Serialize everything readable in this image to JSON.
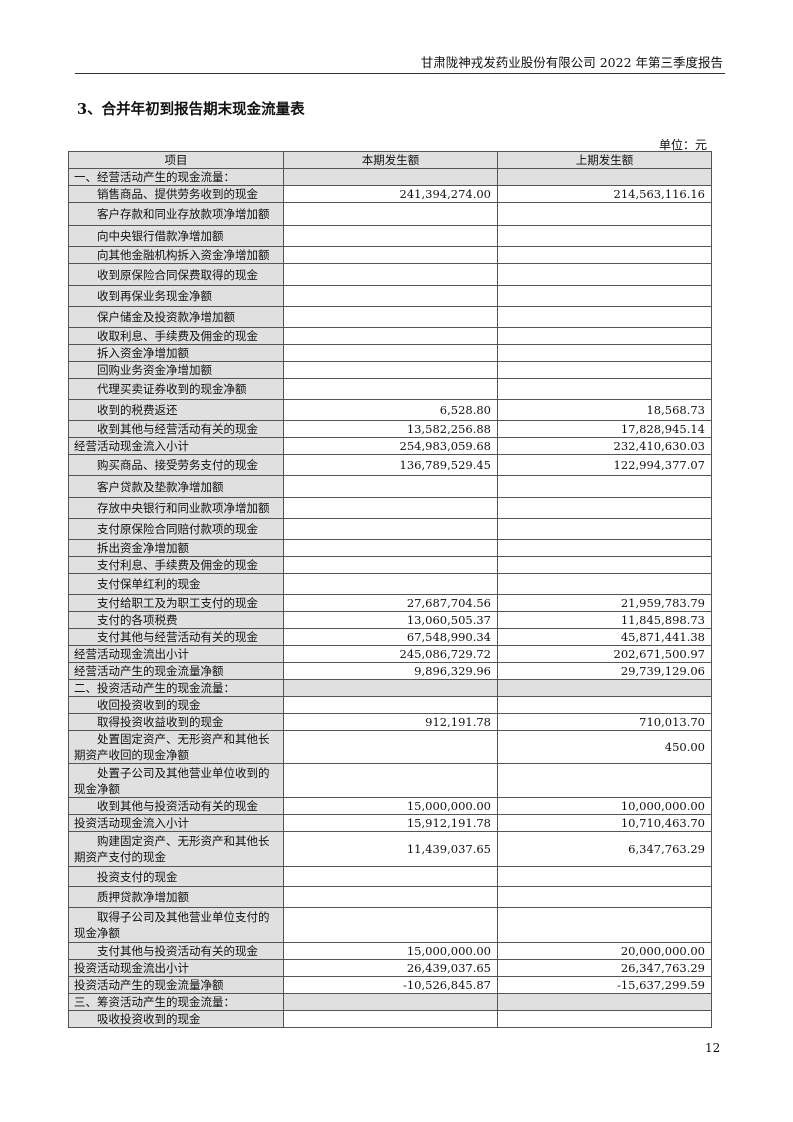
{
  "header": {
    "text": "甘肃陇神戎发药业股份有限公司 2022 年第三季度报告"
  },
  "title": "3、合并年初到报告期末现金流量表",
  "unit": "单位：元",
  "table": {
    "columns": [
      "项目",
      "本期发生额",
      "上期发生额"
    ],
    "rows": [
      {
        "item": "一、经营活动产生的现金流量：",
        "current": "",
        "previous": "",
        "type": "section"
      },
      {
        "item": "销售商品、提供劳务收到的现金",
        "current": "241,394,274.00",
        "previous": "214,563,116.16",
        "type": "indent"
      },
      {
        "item": "客户存款和同业存放款项净增加额",
        "current": "",
        "previous": "",
        "type": "indent"
      },
      {
        "item": "向中央银行借款净增加额",
        "current": "",
        "previous": "",
        "type": "indent"
      },
      {
        "item": "向其他金融机构拆入资金净增加额",
        "current": "",
        "previous": "",
        "type": "indent"
      },
      {
        "item": "收到原保险合同保费取得的现金",
        "current": "",
        "previous": "",
        "type": "indent"
      },
      {
        "item": "收到再保业务现金净额",
        "current": "",
        "previous": "",
        "type": "indent"
      },
      {
        "item": "保户储金及投资款净增加额",
        "current": "",
        "previous": "",
        "type": "indent"
      },
      {
        "item": "收取利息、手续费及佣金的现金",
        "current": "",
        "previous": "",
        "type": "indent"
      },
      {
        "item": "拆入资金净增加额",
        "current": "",
        "previous": "",
        "type": "indent"
      },
      {
        "item": "回购业务资金净增加额",
        "current": "",
        "previous": "",
        "type": "indent"
      },
      {
        "item": "代理买卖证券收到的现金净额",
        "current": "",
        "previous": "",
        "type": "indent"
      },
      {
        "item": "收到的税费返还",
        "current": "6,528.80",
        "previous": "18,568.73",
        "type": "indent"
      },
      {
        "item": "收到其他与经营活动有关的现金",
        "current": "13,582,256.88",
        "previous": "17,828,945.14",
        "type": "indent"
      },
      {
        "item": "经营活动现金流入小计",
        "current": "254,983,059.68",
        "previous": "232,410,630.03",
        "type": "total"
      },
      {
        "item": "购买商品、接受劳务支付的现金",
        "current": "136,789,529.45",
        "previous": "122,994,377.07",
        "type": "indent"
      },
      {
        "item": "客户贷款及垫款净增加额",
        "current": "",
        "previous": "",
        "type": "indent"
      },
      {
        "item": "存放中央银行和同业款项净增加额",
        "current": "",
        "previous": "",
        "type": "indent"
      },
      {
        "item": "支付原保险合同赔付款项的现金",
        "current": "",
        "previous": "",
        "type": "indent"
      },
      {
        "item": "拆出资金净增加额",
        "current": "",
        "previous": "",
        "type": "indent"
      },
      {
        "item": "支付利息、手续费及佣金的现金",
        "current": "",
        "previous": "",
        "type": "indent"
      },
      {
        "item": "支付保单红利的现金",
        "current": "",
        "previous": "",
        "type": "indent"
      },
      {
        "item": "支付给职工及为职工支付的现金",
        "current": "27,687,704.56",
        "previous": "21,959,783.79",
        "type": "indent"
      },
      {
        "item": "支付的各项税费",
        "current": "13,060,505.37",
        "previous": "11,845,898.73",
        "type": "indent"
      },
      {
        "item": "支付其他与经营活动有关的现金",
        "current": "67,548,990.34",
        "previous": "45,871,441.38",
        "type": "indent"
      },
      {
        "item": "经营活动现金流出小计",
        "current": "245,086,729.72",
        "previous": "202,671,500.97",
        "type": "total"
      },
      {
        "item": "经营活动产生的现金流量净额",
        "current": "9,896,329.96",
        "previous": "29,739,129.06",
        "type": "total"
      },
      {
        "item": "二、投资活动产生的现金流量：",
        "current": "",
        "previous": "",
        "type": "section"
      },
      {
        "item": "收回投资收到的现金",
        "current": "",
        "previous": "",
        "type": "indent"
      },
      {
        "item": "取得投资收益收到的现金",
        "current": "912,191.78",
        "previous": "710,013.70",
        "type": "indent"
      },
      {
        "item": "处置固定资产、无形资产和其他长期资产收回的现金净额",
        "current": "",
        "previous": "450.00",
        "type": "indent"
      },
      {
        "item": "处置子公司及其他营业单位收到的现金净额",
        "current": "",
        "previous": "",
        "type": "indent"
      },
      {
        "item": "收到其他与投资活动有关的现金",
        "current": "15,000,000.00",
        "previous": "10,000,000.00",
        "type": "indent"
      },
      {
        "item": "投资活动现金流入小计",
        "current": "15,912,191.78",
        "previous": "10,710,463.70",
        "type": "total"
      },
      {
        "item": "购建固定资产、无形资产和其他长期资产支付的现金",
        "current": "11,439,037.65",
        "previous": "6,347,763.29",
        "type": "indent"
      },
      {
        "item": "投资支付的现金",
        "current": "",
        "previous": "",
        "type": "indent"
      },
      {
        "item": "质押贷款净增加额",
        "current": "",
        "previous": "",
        "type": "indent"
      },
      {
        "item": "取得子公司及其他营业单位支付的现金净额",
        "current": "",
        "previous": "",
        "type": "indent"
      },
      {
        "item": "支付其他与投资活动有关的现金",
        "current": "15,000,000.00",
        "previous": "20,000,000.00",
        "type": "indent"
      },
      {
        "item": "投资活动现金流出小计",
        "current": "26,439,037.65",
        "previous": "26,347,763.29",
        "type": "total"
      },
      {
        "item": "投资活动产生的现金流量净额",
        "current": "-10,526,845.87",
        "previous": "-15,637,299.59",
        "type": "total"
      },
      {
        "item": "三、筹资活动产生的现金流量：",
        "current": "",
        "previous": "",
        "type": "section"
      },
      {
        "item": "吸收投资收到的现金",
        "current": "",
        "previous": "",
        "type": "indent"
      }
    ]
  },
  "page_number": "12"
}
